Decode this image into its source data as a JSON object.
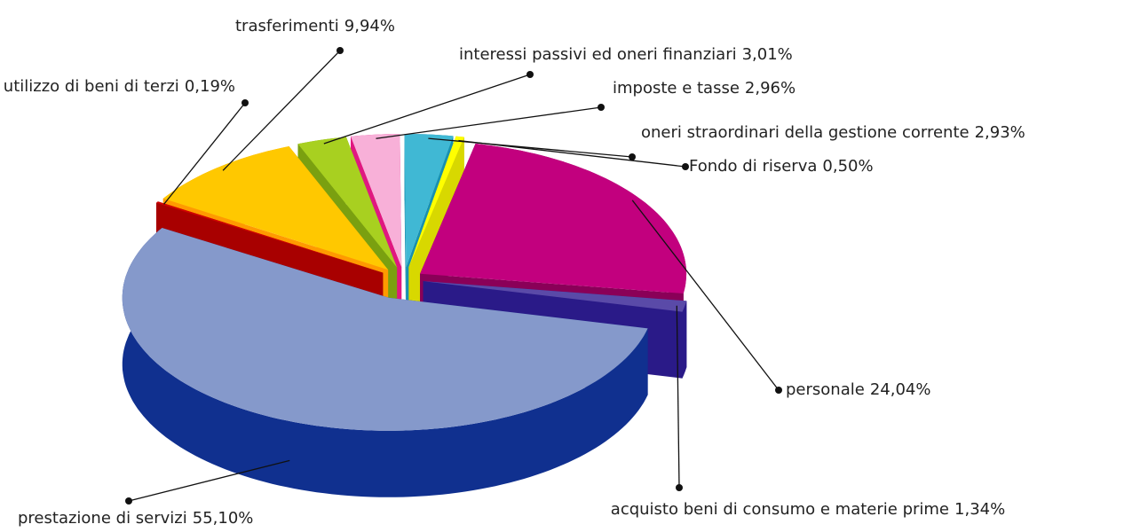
{
  "chart_data": {
    "type": "pie3d",
    "categories": [
      "personale",
      "acquisto beni di consumo e materie prime",
      "prestazione di servizi",
      "utilizzo di beni di terzi",
      "trasferimenti",
      "interessi passivi ed oneri finanziari",
      "imposte e tasse",
      "oneri straordinari della gestione corrente",
      "Fondo di riserva"
    ],
    "values": [
      24.04,
      1.34,
      55.1,
      0.19,
      9.94,
      3.01,
      2.96,
      2.93,
      0.5
    ],
    "value_labels": [
      "24,04%",
      "1,34%",
      "55,10%",
      "0,19%",
      "9,94%",
      "3,01%",
      "2,96%",
      "2,93%",
      "0,50%"
    ],
    "colors": [
      "#c2007e",
      "#5a4aa8",
      "#8599cb",
      "#d00000",
      "#ffc800",
      "#a8d020",
      "#f8b0d8",
      "#40b8d4",
      "#ffff00"
    ],
    "side_colors": [
      "#8a0058",
      "#2a1a88",
      "#10308f",
      "#a80000",
      "#ff9a00",
      "#7aa010",
      "#e01880",
      "#1890b0",
      "#d8d800"
    ]
  }
}
